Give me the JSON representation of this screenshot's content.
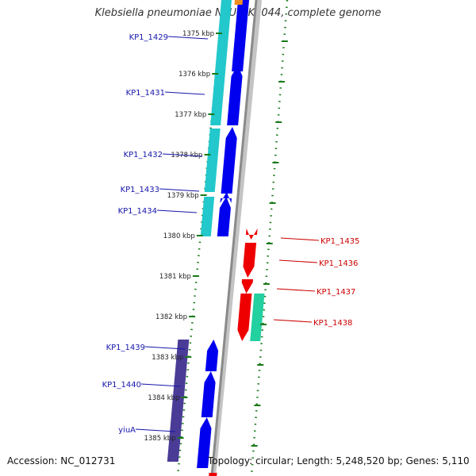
{
  "title": "Klebsiella pneumoniae NTUH-K2044, complete genome",
  "footer": {
    "accession": "Accession: NC_012731",
    "summary": "Topology: circular; Length: 5,248,520 bp; Genes: 5,110"
  },
  "ruler": {
    "unit": "kbp",
    "ticks": [
      1375,
      1376,
      1377,
      1378,
      1379,
      1380,
      1381,
      1382,
      1383,
      1384,
      1385
    ]
  },
  "colors": {
    "forward_gene": "#0000ee",
    "reverse_gene": "#ee0000",
    "forward_label": "#1515aa",
    "reverse_label": "#cc0000",
    "tick": "#1a7a1a",
    "backbone": "#8a8a8a",
    "cyan_feature": "#22c8cc",
    "green_feature": "#22d0a0",
    "purple_feature": "#4a3c96",
    "orange_feature": "#f09020"
  },
  "forward_genes": [
    "KP1_1429",
    "KP1_1431",
    "KP1_1432",
    "KP1_1433",
    "KP1_1434",
    "KP1_1439",
    "KP1_1440",
    "yiuA"
  ],
  "reverse_genes": [
    "KP1_1435",
    "KP1_1436",
    "KP1_1437",
    "KP1_1438"
  ]
}
